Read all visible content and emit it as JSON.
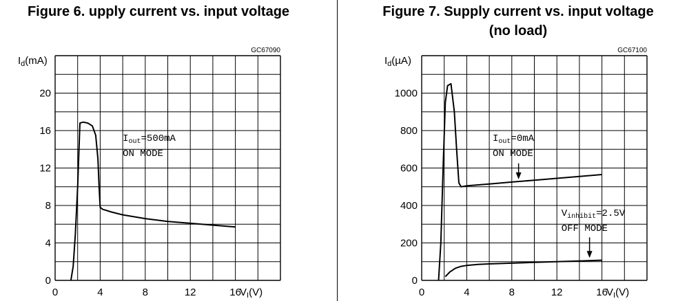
{
  "chart_data": [
    {
      "type": "line",
      "title": "Figure 6. upply current vs. input voltage",
      "code": "GC67090",
      "ylabel": "Id(mA)",
      "ylabel_main": "I",
      "ylabel_sub": "d",
      "ylabel_unit": "(mA)",
      "xlabel": "VI(V)",
      "xlabel_main": "V",
      "xlabel_sub": "I",
      "xlabel_unit": "(V)",
      "xlim": [
        0,
        20
      ],
      "ylim": [
        0,
        24
      ],
      "x_ticks": [
        0,
        4,
        8,
        12,
        16
      ],
      "y_ticks": [
        0,
        4,
        8,
        12,
        16,
        20
      ],
      "grid": true,
      "annotations": [
        {
          "main": "I",
          "sub": "out",
          "rest": "=500mA",
          "x": 6.0,
          "y": 14.9
        },
        {
          "text": "ON MODE",
          "x": 6.0,
          "y": 13.3
        }
      ],
      "series": [
        {
          "x": [
            1.4,
            1.6,
            1.8,
            2.0,
            2.2,
            2.5,
            2.9,
            3.3,
            3.6,
            3.8,
            3.9,
            4.0,
            4.2,
            5,
            6,
            8,
            10,
            12,
            14,
            16
          ],
          "y": [
            0,
            1.5,
            5,
            10,
            16.8,
            16.9,
            16.8,
            16.5,
            15.5,
            13,
            10,
            7.8,
            7.6,
            7.3,
            7.0,
            6.6,
            6.3,
            6.1,
            5.9,
            5.7
          ]
        }
      ]
    },
    {
      "type": "line",
      "title_lines": [
        "Figure 7. Supply current vs. input voltage",
        "(no load)"
      ],
      "code": "GC67100",
      "ylabel": "Id(µA)",
      "ylabel_main": "I",
      "ylabel_sub": "d",
      "ylabel_unit": "(µA)",
      "xlabel": "VI(V)",
      "xlabel_main": "V",
      "xlabel_sub": "I",
      "xlabel_unit": "(V)",
      "xlim": [
        0,
        20
      ],
      "ylim": [
        0,
        1200
      ],
      "x_ticks": [
        0,
        4,
        8,
        12,
        16
      ],
      "y_ticks": [
        0,
        200,
        400,
        600,
        800,
        1000
      ],
      "grid": true,
      "annotations": [
        {
          "main": "I",
          "sub": "out",
          "rest": "=0mA",
          "x": 6.3,
          "y": 745
        },
        {
          "text": "ON MODE",
          "x": 6.3,
          "y": 665
        },
        {
          "main": "V",
          "sub": "inhibit",
          "rest": "=2.5V",
          "x": 12.4,
          "y": 345
        },
        {
          "text": "OFF MODE",
          "x": 12.4,
          "y": 265
        }
      ],
      "series": [
        {
          "name": "ON MODE",
          "x": [
            1.5,
            1.7,
            1.9,
            2.1,
            2.3,
            2.6,
            2.9,
            3.1,
            3.3,
            3.5,
            4,
            6,
            8,
            10,
            12,
            14,
            16
          ],
          "y": [
            0,
            200,
            600,
            950,
            1040,
            1050,
            900,
            700,
            520,
            500,
            505,
            515,
            525,
            535,
            545,
            555,
            565
          ]
        },
        {
          "name": "OFF MODE",
          "x": [
            2.1,
            2.5,
            3.0,
            3.5,
            4,
            5,
            6,
            8,
            10,
            12,
            14,
            16
          ],
          "y": [
            20,
            45,
            65,
            75,
            80,
            85,
            88,
            92,
            96,
            100,
            104,
            108
          ]
        }
      ]
    }
  ]
}
